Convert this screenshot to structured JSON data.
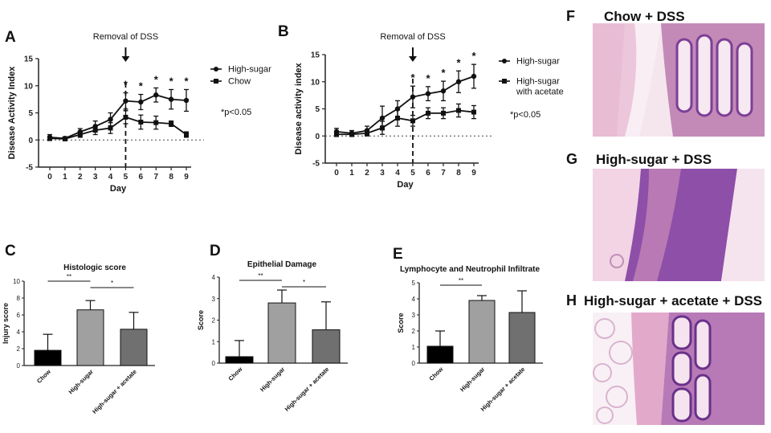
{
  "colors": {
    "axis": "#222222",
    "chow": "#000000",
    "high_sugar": "#a0a0a0",
    "acetate": "#707070",
    "he_bg": "#f3dde8",
    "he_pink": "#e8a9c8",
    "he_purple": "#8a4fa8",
    "he_dark": "#5a2a7c"
  },
  "panels": {
    "A": "A",
    "B": "B",
    "C": "C",
    "D": "D",
    "E": "E",
    "F": "F",
    "G": "G",
    "H": "H"
  },
  "chart_data": [
    {
      "id": "A",
      "type": "line",
      "annotation": "Removal of DSS",
      "xlabel": "Day",
      "ylabel": "Disease Activity Index",
      "ylim": [
        -5,
        15
      ],
      "yticks": [
        "-5",
        "0",
        "5",
        "10",
        "15"
      ],
      "x": [
        0,
        1,
        2,
        3,
        4,
        5,
        6,
        7,
        8,
        9
      ],
      "xtick_labels": [
        "0",
        "1",
        "2",
        "3",
        "4",
        "5",
        "6",
        "7",
        "8",
        "9"
      ],
      "removal_day": 5,
      "note": "*p<0.05",
      "significance": [
        {
          "x": 5,
          "label": "*"
        },
        {
          "x": 6,
          "label": "*"
        },
        {
          "x": 7,
          "label": "*"
        },
        {
          "x": 8,
          "label": "*"
        },
        {
          "x": 9,
          "label": "*"
        }
      ],
      "series": [
        {
          "name": "High-sugar",
          "marker": "circle",
          "values": [
            0.5,
            0.3,
            1.5,
            2.5,
            3.8,
            7.2,
            7.0,
            8.3,
            7.5,
            7.3
          ],
          "errors": [
            0.5,
            0.3,
            0.6,
            1.0,
            1.2,
            1.5,
            1.4,
            1.3,
            1.8,
            2.0
          ]
        },
        {
          "name": "Chow",
          "marker": "square",
          "values": [
            0.3,
            0.2,
            1.0,
            1.8,
            2.2,
            4.2,
            3.3,
            3.2,
            3.0,
            1.0
          ],
          "errors": [
            0.4,
            0.3,
            0.5,
            0.8,
            1.0,
            1.2,
            1.3,
            1.2,
            0.5,
            0.5
          ]
        }
      ]
    },
    {
      "id": "B",
      "type": "line",
      "annotation": "Removal of DSS",
      "xlabel": "Day",
      "ylabel": "Disease activity index",
      "ylim": [
        -5,
        15
      ],
      "yticks": [
        "-5",
        "0",
        "5",
        "10",
        "15"
      ],
      "x": [
        0,
        1,
        2,
        3,
        4,
        5,
        6,
        7,
        8,
        9
      ],
      "xtick_labels": [
        "0",
        "1",
        "2",
        "3",
        "4",
        "5",
        "6",
        "7",
        "8",
        "9"
      ],
      "removal_day": 5,
      "note": "*p<0.05",
      "significance": [
        {
          "x": 5,
          "label": "*"
        },
        {
          "x": 6,
          "label": "*"
        },
        {
          "x": 7,
          "label": "*"
        },
        {
          "x": 8,
          "label": "*"
        },
        {
          "x": 9,
          "label": "*"
        }
      ],
      "series": [
        {
          "name": "High-sugar",
          "marker": "circle",
          "values": [
            0.8,
            0.5,
            1.0,
            3.3,
            5.0,
            7.2,
            7.8,
            8.3,
            10.0,
            11.0
          ],
          "errors": [
            0.6,
            0.5,
            0.8,
            2.2,
            1.5,
            2.0,
            1.3,
            1.8,
            2.0,
            2.2
          ]
        },
        {
          "name": "High-sugar with acetate",
          "marker": "square",
          "values": [
            0.3,
            0.3,
            0.5,
            1.5,
            3.3,
            2.8,
            4.2,
            4.2,
            4.7,
            4.4
          ],
          "errors": [
            0.4,
            0.4,
            0.5,
            1.2,
            1.5,
            1.0,
            1.0,
            1.0,
            1.2,
            1.2
          ]
        }
      ]
    },
    {
      "id": "C",
      "type": "bar",
      "title": "Histologic score",
      "ylabel": "Injury score",
      "ylim": [
        0,
        10
      ],
      "yticks": [
        "0",
        "2",
        "4",
        "6",
        "8",
        "10"
      ],
      "categories": [
        "Chow",
        "High-sugar",
        "High-sugar + acetate"
      ],
      "values": [
        1.8,
        6.6,
        4.3
      ],
      "errors": [
        1.9,
        1.1,
        2.0
      ],
      "significance": [
        {
          "from": 0,
          "to": 1,
          "label": "**"
        },
        {
          "from": 1,
          "to": 2,
          "label": "*"
        }
      ]
    },
    {
      "id": "D",
      "type": "bar",
      "title": "Epithelial Damage",
      "ylabel": "Score",
      "ylim": [
        0,
        4
      ],
      "yticks": [
        "0",
        "1",
        "2",
        "3",
        "4"
      ],
      "categories": [
        "Chow",
        "High-sugar",
        "High-sugar + acetate"
      ],
      "values": [
        0.3,
        2.8,
        1.55
      ],
      "errors": [
        0.75,
        0.6,
        1.3
      ],
      "significance": [
        {
          "from": 0,
          "to": 1,
          "label": "**"
        },
        {
          "from": 1,
          "to": 2,
          "label": "*"
        }
      ]
    },
    {
      "id": "E",
      "type": "bar",
      "title": "Lymphocyte and Neutrophil Infiltrate",
      "ylabel": "Score",
      "ylim": [
        0,
        5
      ],
      "yticks": [
        "0",
        "1",
        "2",
        "3",
        "4",
        "5"
      ],
      "categories": [
        "Chow",
        "High-sugar",
        "High-sugar + acetate"
      ],
      "values": [
        1.05,
        3.9,
        3.15
      ],
      "errors": [
        0.95,
        0.3,
        1.35
      ],
      "significance": [
        {
          "from": 0,
          "to": 1,
          "label": "**"
        }
      ]
    }
  ],
  "histology": {
    "F": "Chow + DSS",
    "G": "High-sugar + DSS",
    "H": "High-sugar + acetate + DSS"
  }
}
